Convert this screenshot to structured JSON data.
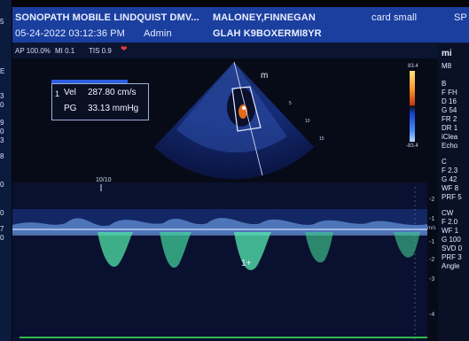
{
  "header": {
    "title": "SONOPATH MOBILE LINDQUIST DMV...",
    "patient_name": "MALONEY,FINNEGAN",
    "preset": "card small",
    "right_fragment": "SP",
    "datetime": "05-24-2022 03:12:36 PM",
    "user": "Admin",
    "patient_id": "GLAH K9BOXERMI8YR"
  },
  "status_bar": {
    "ap": "AP 100.0%",
    "mi": "MI 0.1",
    "tis": "TIS 0.9"
  },
  "measurement": {
    "index": "1",
    "vel_label": "Vel",
    "vel_value": "287.80 cm/s",
    "pg_label": "PG",
    "pg_value": "33.13 mmHg"
  },
  "sector": {
    "marker": "m",
    "depth_ticks": [
      "5",
      "10",
      "15"
    ]
  },
  "colorbar": {
    "top": "83.4",
    "bottom": "-83.4"
  },
  "right_panel": {
    "lines": [
      "mi",
      "M8",
      "B",
      "F FH",
      "D 16",
      "G 54",
      "FR 2",
      "DR 1",
      "iClea",
      "Echo",
      "C",
      "F 2.3",
      "G 42",
      "WF 8",
      "PRF 5",
      "CW",
      "F 2.0",
      "WF 1",
      "G 100",
      "SVD 0",
      "PRF 3",
      "Angle"
    ]
  },
  "doppler": {
    "speed_label": "10/10",
    "baseline_label": "m/s",
    "scale_ticks": [
      "-2",
      "-1",
      "-1",
      "-2",
      "-3",
      "-4"
    ],
    "cursor_label": "1+"
  },
  "left_strip": {
    "lines": [
      "5",
      "E",
      "3",
      "0",
      "9",
      "0",
      "3",
      "8",
      "0",
      "0",
      "7",
      "0"
    ]
  },
  "colors": {
    "header_bg": "#1a3f9e",
    "heart": "#e43b3b",
    "doppler_green": "#34b64a"
  }
}
